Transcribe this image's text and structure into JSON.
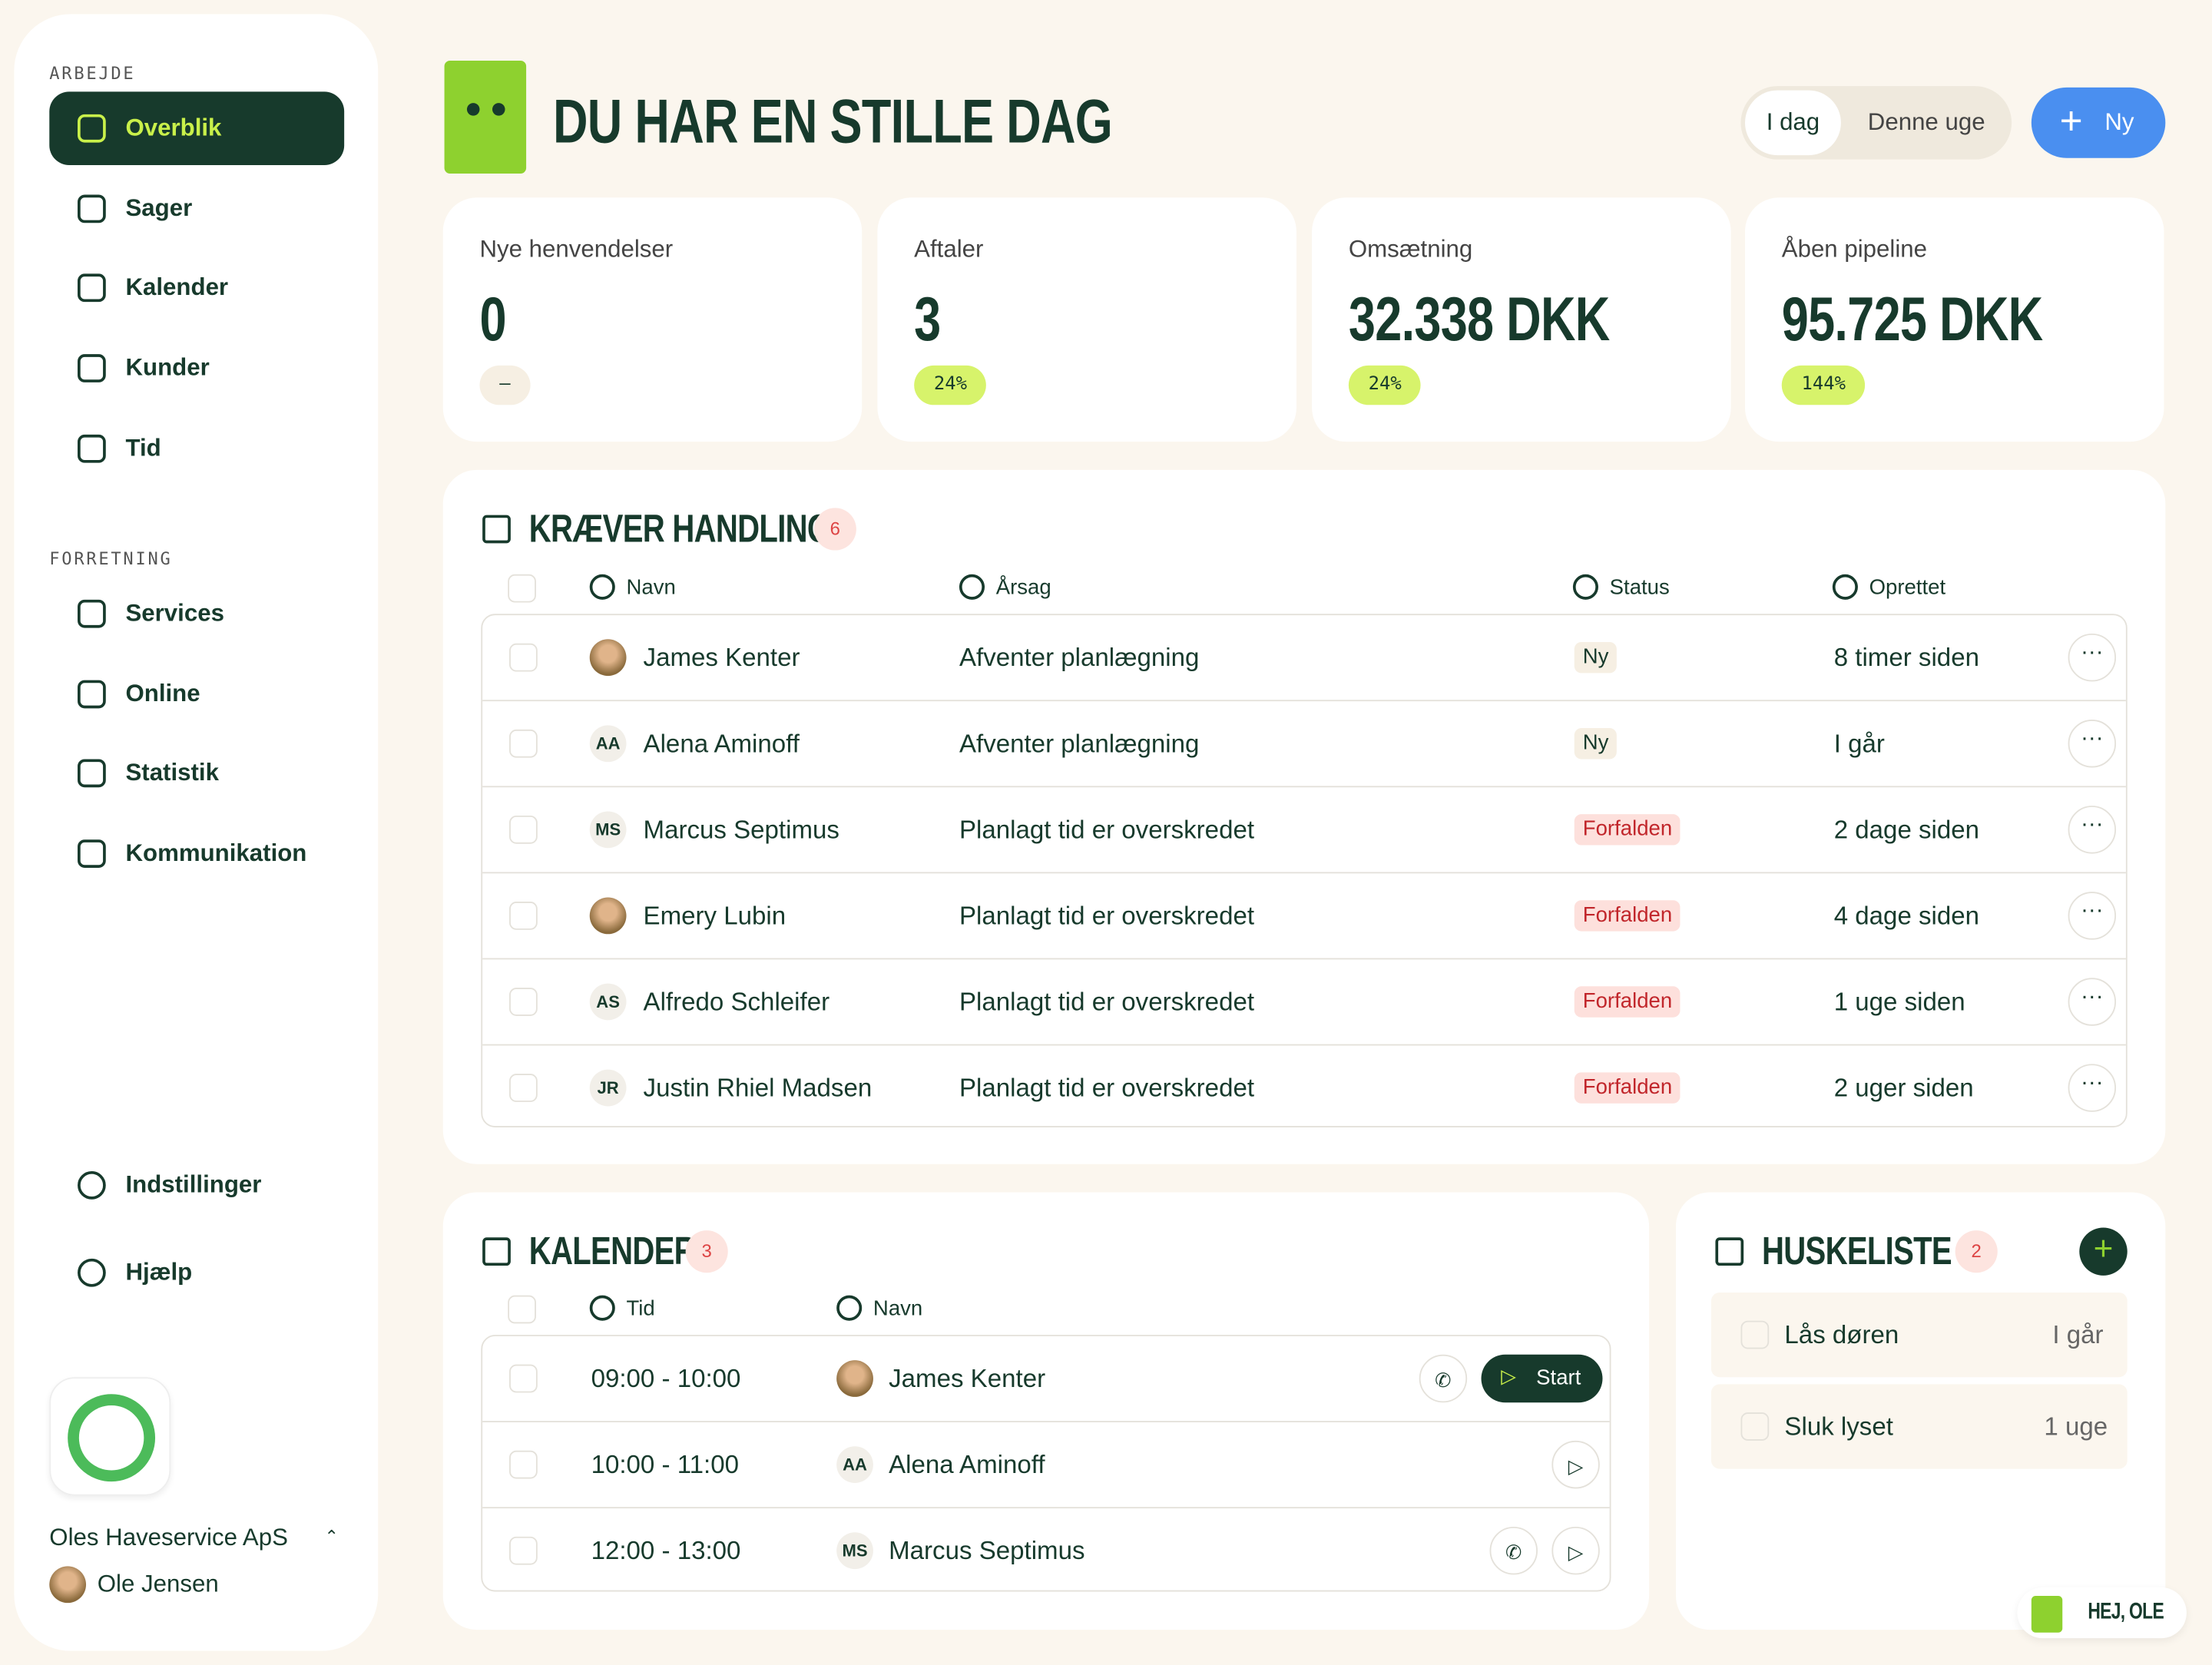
{
  "sidebar": {
    "sections": [
      {
        "label": "ARBEJDE",
        "items": [
          "Overblik",
          "Sager",
          "Kalender",
          "Kunder",
          "Tid"
        ]
      },
      {
        "label": "FORRETNING",
        "items": [
          "Services",
          "Online",
          "Statistik",
          "Kommunikation"
        ]
      }
    ],
    "bottom": [
      "Indstillinger",
      "Hjælp"
    ],
    "company": "Oles Haveservice ApS",
    "user": "Ole Jensen"
  },
  "header": {
    "title": "DU HAR EN STILLE DAG",
    "tabs": [
      "I dag",
      "Denne uge"
    ],
    "new_button": "Ny"
  },
  "stats": [
    {
      "label": "Nye henvendelser",
      "value": "0",
      "change": "—"
    },
    {
      "label": "Aftaler",
      "value": "3",
      "change": "24%"
    },
    {
      "label": "Omsætning",
      "value": "32.338 DKK",
      "change": "24%"
    },
    {
      "label": "Åben pipeline",
      "value": "95.725 DKK",
      "change": "144%"
    }
  ],
  "action": {
    "title": "KRÆVER HANDLING",
    "count": "6",
    "columns": [
      "Navn",
      "Årsag",
      "Status",
      "Oprettet"
    ],
    "rows": [
      {
        "name": "James Kenter",
        "reason": "Afventer planlægning",
        "status": "Ny",
        "created": "8 timer siden"
      },
      {
        "initials": "AA",
        "name": "Alena Aminoff",
        "reason": "Afventer planlægning",
        "status": "Ny",
        "created": "I går"
      },
      {
        "initials": "MS",
        "name": "Marcus Septimus",
        "reason": "Planlagt tid er overskredet",
        "status": "Forfalden",
        "created": "2 dage siden"
      },
      {
        "name": "Emery Lubin",
        "reason": "Planlagt tid er overskredet",
        "status": "Forfalden",
        "created": "4 dage siden"
      },
      {
        "initials": "AS",
        "name": "Alfredo Schleifer",
        "reason": "Planlagt tid er overskredet",
        "status": "Forfalden",
        "created": "1 uge siden"
      },
      {
        "initials": "JR",
        "name": "Justin Rhiel Madsen",
        "reason": "Planlagt tid er overskredet",
        "status": "Forfalden",
        "created": "2 uger siden"
      }
    ]
  },
  "calendar": {
    "title": "KALENDER",
    "count": "3",
    "columns": [
      "Tid",
      "Navn"
    ],
    "start": "Start",
    "rows": [
      {
        "time": "09:00 - 10:00",
        "name": "James Kenter"
      },
      {
        "time": "10:00 - 11:00",
        "initials": "AA",
        "name": "Alena Aminoff"
      },
      {
        "time": "12:00 - 13:00",
        "initials": "MS",
        "name": "Marcus Septimus"
      }
    ]
  },
  "todo": {
    "title": "HUSKELISTE",
    "count": "2",
    "items": [
      {
        "text": "Lås døren",
        "when": "I går"
      },
      {
        "text": "Sluk lyset",
        "when": "1 uge"
      }
    ]
  },
  "greeting": "HEJ, OLE"
}
